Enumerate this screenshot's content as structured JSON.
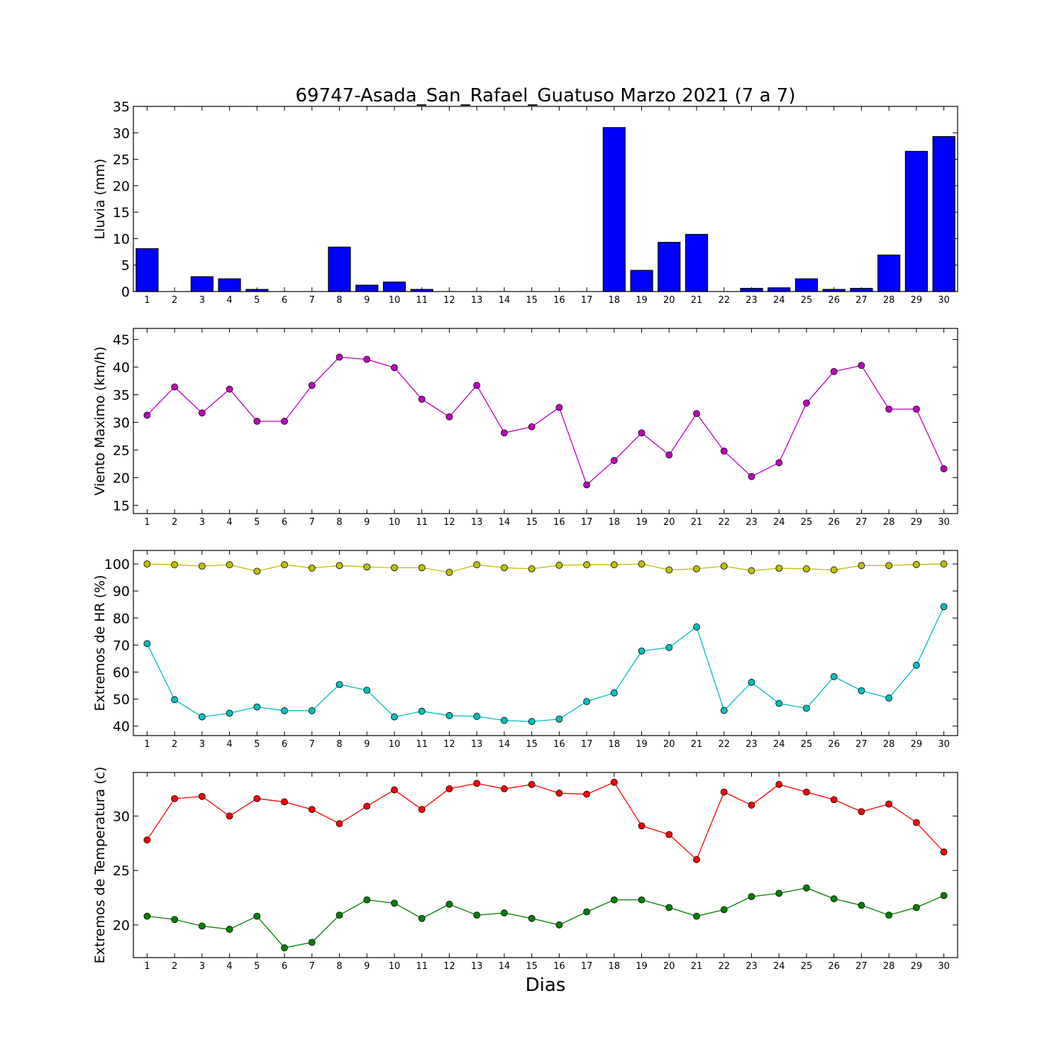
{
  "figure": {
    "title": "69747-Asada_San_Rafael_Guatuso Marzo 2021  (7 a 7)",
    "xlabel": "Dias"
  },
  "chart_data": [
    {
      "type": "bar",
      "ylabel": "Lluvia (mm)",
      "ylim": [
        0,
        35
      ],
      "yticks": [
        0,
        5,
        10,
        15,
        20,
        25,
        30,
        35
      ],
      "xlim": [
        0.5,
        30.5
      ],
      "x": [
        1,
        2,
        3,
        4,
        5,
        6,
        7,
        8,
        9,
        10,
        11,
        12,
        13,
        14,
        15,
        16,
        17,
        18,
        19,
        20,
        21,
        22,
        23,
        24,
        25,
        26,
        27,
        28,
        29,
        30
      ],
      "series": [
        {
          "color": "#0000ff",
          "values": [
            8.1,
            0,
            2.8,
            2.4,
            0.4,
            0,
            0,
            8.4,
            1.2,
            1.8,
            0.4,
            0,
            0,
            0,
            0,
            0,
            0,
            31,
            4,
            9.3,
            10.8,
            0,
            0.6,
            0.7,
            2.4,
            0.4,
            0.6,
            6.9,
            26.5,
            29.3
          ]
        }
      ],
      "grid": false
    },
    {
      "type": "line",
      "ylabel": "Viento Maximo (km/h)",
      "ylim": [
        13.5,
        47
      ],
      "yticks": [
        15,
        20,
        25,
        30,
        35,
        40,
        45
      ],
      "xlim": [
        0.5,
        30.5
      ],
      "x": [
        1,
        2,
        3,
        4,
        5,
        6,
        7,
        8,
        9,
        10,
        11,
        12,
        13,
        14,
        15,
        16,
        17,
        18,
        19,
        20,
        21,
        22,
        23,
        24,
        25,
        26,
        27,
        28,
        29,
        30
      ],
      "series": [
        {
          "color": "#bf00bf",
          "values": [
            31.3,
            36.4,
            31.7,
            36,
            30.2,
            30.2,
            36.7,
            41.8,
            41.4,
            39.9,
            34.2,
            31,
            36.7,
            28.1,
            29.2,
            32.7,
            18.7,
            23.1,
            28.1,
            24.1,
            31.6,
            24.8,
            20.2,
            22.7,
            33.5,
            39.2,
            40.3,
            32.4,
            32.4,
            21.6
          ]
        }
      ],
      "grid": false
    },
    {
      "type": "line",
      "ylabel": "Extremos de HR (%)",
      "ylim": [
        36.5,
        105
      ],
      "yticks": [
        40,
        50,
        60,
        70,
        80,
        90,
        100
      ],
      "xlim": [
        0.5,
        30.5
      ],
      "x": [
        1,
        2,
        3,
        4,
        5,
        6,
        7,
        8,
        9,
        10,
        11,
        12,
        13,
        14,
        15,
        16,
        17,
        18,
        19,
        20,
        21,
        22,
        23,
        24,
        25,
        26,
        27,
        28,
        29,
        30
      ],
      "series": [
        {
          "color": "#bfbf00",
          "values": [
            100,
            99.7,
            99.2,
            99.7,
            97.3,
            99.7,
            98.5,
            99.4,
            98.9,
            98.6,
            98.6,
            96.9,
            99.7,
            98.6,
            98.2,
            99.5,
            99.7,
            99.7,
            100,
            97.8,
            98.2,
            99.2,
            97.5,
            98.4,
            98.2,
            97.8,
            99.4,
            99.4,
            99.8,
            100
          ]
        },
        {
          "color": "#00bfbf",
          "values": [
            70.5,
            49.8,
            43.4,
            44.8,
            47.1,
            45.7,
            45.7,
            55.4,
            53.3,
            43.4,
            45.5,
            43.9,
            43.6,
            42.1,
            41.7,
            42.6,
            49.1,
            52.3,
            67.8,
            69.1,
            76.7,
            45.8,
            56.2,
            48.4,
            46.6,
            58.3,
            53.1,
            50.4,
            62.5,
            84.2
          ]
        }
      ],
      "grid": false
    },
    {
      "type": "line",
      "ylabel": "Extremos de Temperatura (c)",
      "ylim": [
        17,
        34
      ],
      "yticks": [
        20,
        25,
        30
      ],
      "xlim": [
        0.5,
        30.5
      ],
      "x": [
        1,
        2,
        3,
        4,
        5,
        6,
        7,
        8,
        9,
        10,
        11,
        12,
        13,
        14,
        15,
        16,
        17,
        18,
        19,
        20,
        21,
        22,
        23,
        24,
        25,
        26,
        27,
        28,
        29,
        30
      ],
      "series": [
        {
          "color": "#ff0000",
          "values": [
            27.8,
            31.6,
            31.8,
            30,
            31.6,
            31.3,
            30.6,
            29.3,
            30.9,
            32.4,
            30.6,
            32.5,
            33,
            32.5,
            32.9,
            32.1,
            32,
            33.1,
            29.1,
            28.3,
            26,
            32.2,
            31,
            32.9,
            32.2,
            31.5,
            30.4,
            31.1,
            29.4,
            26.7
          ]
        },
        {
          "color": "#008000",
          "values": [
            20.8,
            20.5,
            19.9,
            19.6,
            20.8,
            17.9,
            18.4,
            20.9,
            22.3,
            22,
            20.6,
            21.9,
            20.9,
            21.1,
            20.6,
            20,
            21.2,
            22.3,
            22.3,
            21.6,
            20.8,
            21.4,
            22.6,
            22.9,
            23.4,
            22.4,
            21.8,
            20.9,
            21.6,
            22.7
          ]
        }
      ],
      "grid": false
    }
  ]
}
